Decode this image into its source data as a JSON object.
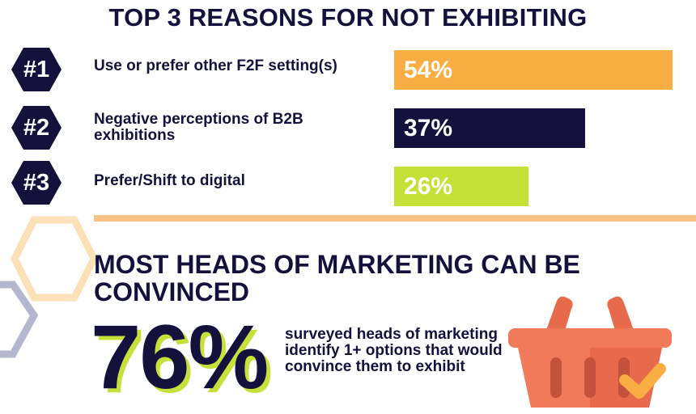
{
  "title": "TOP 3 REASONS FOR NOT EXHIBITING",
  "reasons": [
    {
      "rank": "#1",
      "label": "Use or prefer other F2F setting(s)",
      "value_label": "54%"
    },
    {
      "rank": "#2",
      "label": "Negative perceptions of B2B exhibitions",
      "value_label": "37%"
    },
    {
      "rank": "#3",
      "label": "Prefer/Shift to digital",
      "value_label": "26%"
    }
  ],
  "chart_data": {
    "type": "bar",
    "orientation": "horizontal",
    "categories": [
      "Use or prefer other F2F setting(s)",
      "Negative perceptions of B2B exhibitions",
      "Prefer/Shift to digital"
    ],
    "values": [
      54,
      37,
      26
    ],
    "unit": "%",
    "colors": [
      "#f9ae43",
      "#14123d",
      "#c5e036"
    ],
    "xlim": [
      0,
      54
    ]
  },
  "headline": "MOST HEADS OF MARKETING CAN BE CONVINCED",
  "stat": {
    "value": "76%",
    "description": "surveyed heads of marketing identify 1+ options that would convince them to exhibit"
  },
  "colors": {
    "navy": "#14123d",
    "orange": "#f9ae43",
    "lime": "#c5e036",
    "peach": "#f9c385",
    "basket": "#f07a5a"
  },
  "icons": [
    "hexagon-badge",
    "hexagon-decoration",
    "shopping-basket-icon",
    "checkmark-icon"
  ]
}
